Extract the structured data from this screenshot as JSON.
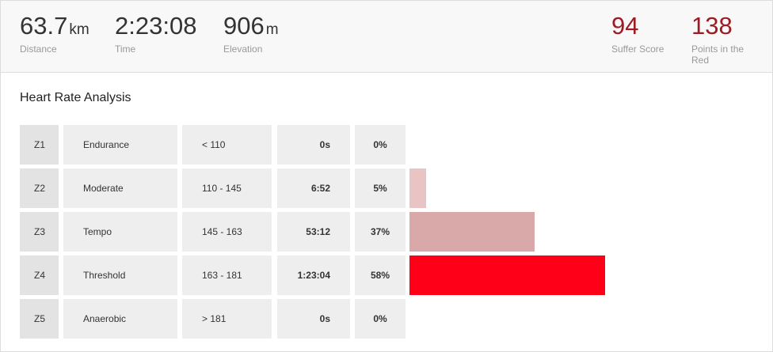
{
  "stats": [
    {
      "value": "63.7",
      "unit": "km",
      "label": "Distance"
    },
    {
      "value": "2:23:08",
      "label": "Time"
    },
    {
      "value": "906",
      "unit": "m",
      "label": "Elevation"
    }
  ],
  "scores": [
    {
      "value": "94",
      "label": "Suffer Score"
    },
    {
      "value": "138",
      "label": "Points in the Red"
    }
  ],
  "section_title": "Heart Rate Analysis",
  "zones": [
    {
      "zone": "Z1",
      "name": "Endurance",
      "range": "< 110",
      "time": "0s",
      "percent": 0,
      "percent_label": "0%",
      "color": "#e8c4c4"
    },
    {
      "zone": "Z2",
      "name": "Moderate",
      "range": "110 - 145",
      "time": "6:52",
      "percent": 5,
      "percent_label": "5%",
      "color": "#e8c4c4"
    },
    {
      "zone": "Z3",
      "name": "Tempo",
      "range": "145 - 163",
      "time": "53:12",
      "percent": 37,
      "percent_label": "37%",
      "color": "#d9a9aa"
    },
    {
      "zone": "Z4",
      "name": "Threshold",
      "range": "163 - 181",
      "time": "1:23:04",
      "percent": 58,
      "percent_label": "58%",
      "color": "#ff0019"
    },
    {
      "zone": "Z5",
      "name": "Anaerobic",
      "range": "> 181",
      "time": "0s",
      "percent": 0,
      "percent_label": "0%",
      "color": "#ff0019"
    }
  ]
}
